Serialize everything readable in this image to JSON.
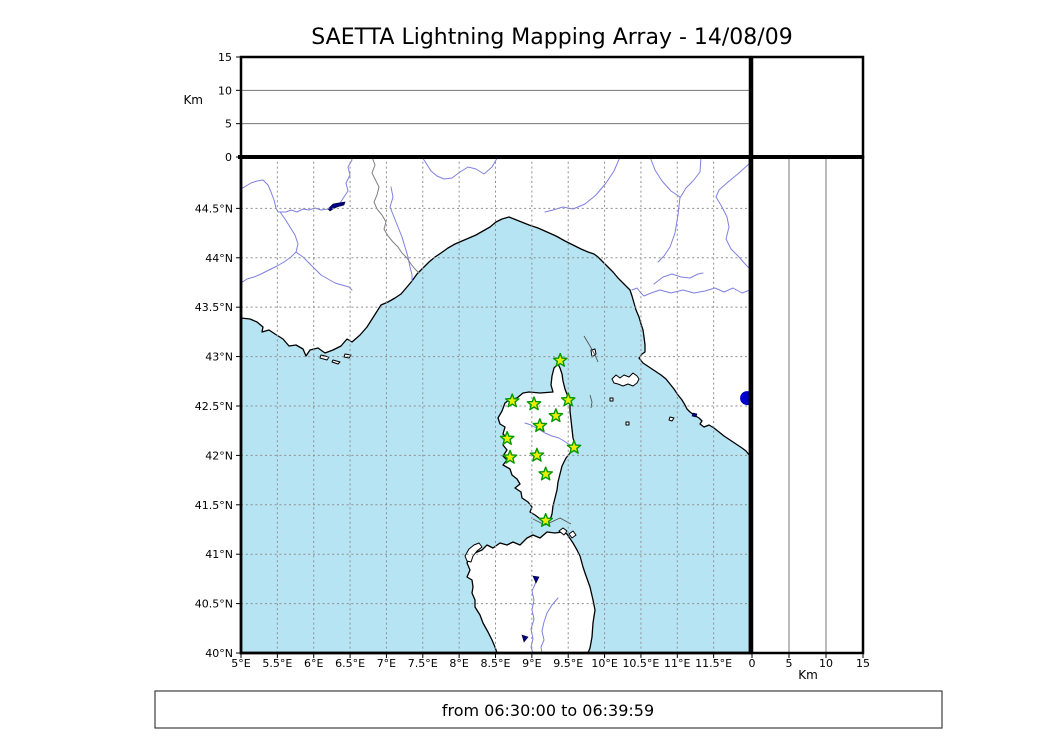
{
  "title": "SAETTA Lightning Mapping Array - 14/08/09",
  "time_range_label": "from 06:30:00 to 06:39:59",
  "colors": {
    "sea": "#b7e4f3",
    "land": "#ffffff",
    "coastline": "#000000",
    "river": "#8080e0",
    "country_border": "#808080",
    "maritime_boundary": "#555555",
    "grid": "#8f8f8f",
    "panel_grid": "#777777",
    "station_fill": "#e8f000",
    "station_edge": "#009900",
    "event_dot": "#0000cc",
    "lake": "#000080"
  },
  "altitude_axis": {
    "label": "Km",
    "min": 0,
    "max": 15,
    "ticks": [
      {
        "v": 0,
        "label": "0"
      },
      {
        "v": 5,
        "label": "5"
      },
      {
        "v": 10,
        "label": "10"
      },
      {
        "v": 15,
        "label": "15"
      }
    ],
    "gridlines": [
      5,
      10
    ]
  },
  "map_axes": {
    "lon": {
      "min": 5.0,
      "max": 12.0,
      "ticks": [
        {
          "v": 5.0,
          "label": "5°E"
        },
        {
          "v": 5.5,
          "label": "5.5°E"
        },
        {
          "v": 6.0,
          "label": "6°E"
        },
        {
          "v": 6.5,
          "label": "6.5°E"
        },
        {
          "v": 7.0,
          "label": "7°E"
        },
        {
          "v": 7.5,
          "label": "7.5°E"
        },
        {
          "v": 8.0,
          "label": "8°E"
        },
        {
          "v": 8.5,
          "label": "8.5°E"
        },
        {
          "v": 9.0,
          "label": "9°E"
        },
        {
          "v": 9.5,
          "label": "9.5°E"
        },
        {
          "v": 10.0,
          "label": "10°E"
        },
        {
          "v": 10.5,
          "label": "10.5°E"
        },
        {
          "v": 11.0,
          "label": "11°E"
        },
        {
          "v": 11.5,
          "label": "11.5°E"
        }
      ]
    },
    "lat": {
      "min": 40.0,
      "max": 45.02,
      "ticks": [
        {
          "v": 40.0,
          "label": "40°N"
        },
        {
          "v": 40.5,
          "label": "40.5°N"
        },
        {
          "v": 41.0,
          "label": "41°N"
        },
        {
          "v": 41.5,
          "label": "41.5°N"
        },
        {
          "v": 42.0,
          "label": "42°N"
        },
        {
          "v": 42.5,
          "label": "42.5°N"
        },
        {
          "v": 43.0,
          "label": "43°N"
        },
        {
          "v": 43.5,
          "label": "43.5°N"
        },
        {
          "v": 44.0,
          "label": "44°N"
        },
        {
          "v": 44.5,
          "label": "44.5°N"
        }
      ]
    },
    "grid_step_deg": 0.5
  },
  "chart_data": {
    "type": "scatter",
    "title": "SAETTA Lightning Mapping Array - 14/08/09",
    "subtitle": "from 06:30:00 to 06:39:59",
    "panels": [
      {
        "id": "altitude-vs-longitude",
        "position": "top",
        "x_range": [
          5.0,
          12.0
        ],
        "y_range": [
          0,
          15
        ],
        "y_label": "Km",
        "y_ticks": [
          0,
          5,
          10,
          15
        ],
        "grid": "horizontal at 5 and 10 km",
        "points": []
      },
      {
        "id": "map",
        "position": "main",
        "region": "Corsica / Ligurian and Tyrrhenian Sea",
        "lon_range": [
          5.0,
          12.0
        ],
        "lat_range": [
          40.0,
          45.02
        ],
        "grid_step_deg": 0.5,
        "lma_stations": [
          {
            "lon": 9.39,
            "lat": 42.96
          },
          {
            "lon": 8.73,
            "lat": 42.55
          },
          {
            "lon": 9.03,
            "lat": 42.52
          },
          {
            "lon": 9.5,
            "lat": 42.56
          },
          {
            "lon": 9.33,
            "lat": 42.4
          },
          {
            "lon": 9.11,
            "lat": 42.3
          },
          {
            "lon": 8.66,
            "lat": 42.17
          },
          {
            "lon": 9.58,
            "lat": 42.08
          },
          {
            "lon": 9.07,
            "lat": 42.0
          },
          {
            "lon": 8.7,
            "lat": 41.98
          },
          {
            "lon": 9.19,
            "lat": 41.81
          },
          {
            "lon": 9.19,
            "lat": 41.34
          }
        ],
        "events": [
          {
            "lon": 11.96,
            "lat": 42.58,
            "color": "#0000cc"
          }
        ]
      },
      {
        "id": "altitude-vs-latitude",
        "position": "right",
        "x_range": [
          0,
          15
        ],
        "x_label": "Km",
        "x_ticks": [
          0,
          5,
          10,
          15
        ],
        "y_range": [
          40.0,
          45.02
        ],
        "grid": "vertical at 5 and 10 km",
        "points": []
      }
    ],
    "legend_position": "none"
  }
}
